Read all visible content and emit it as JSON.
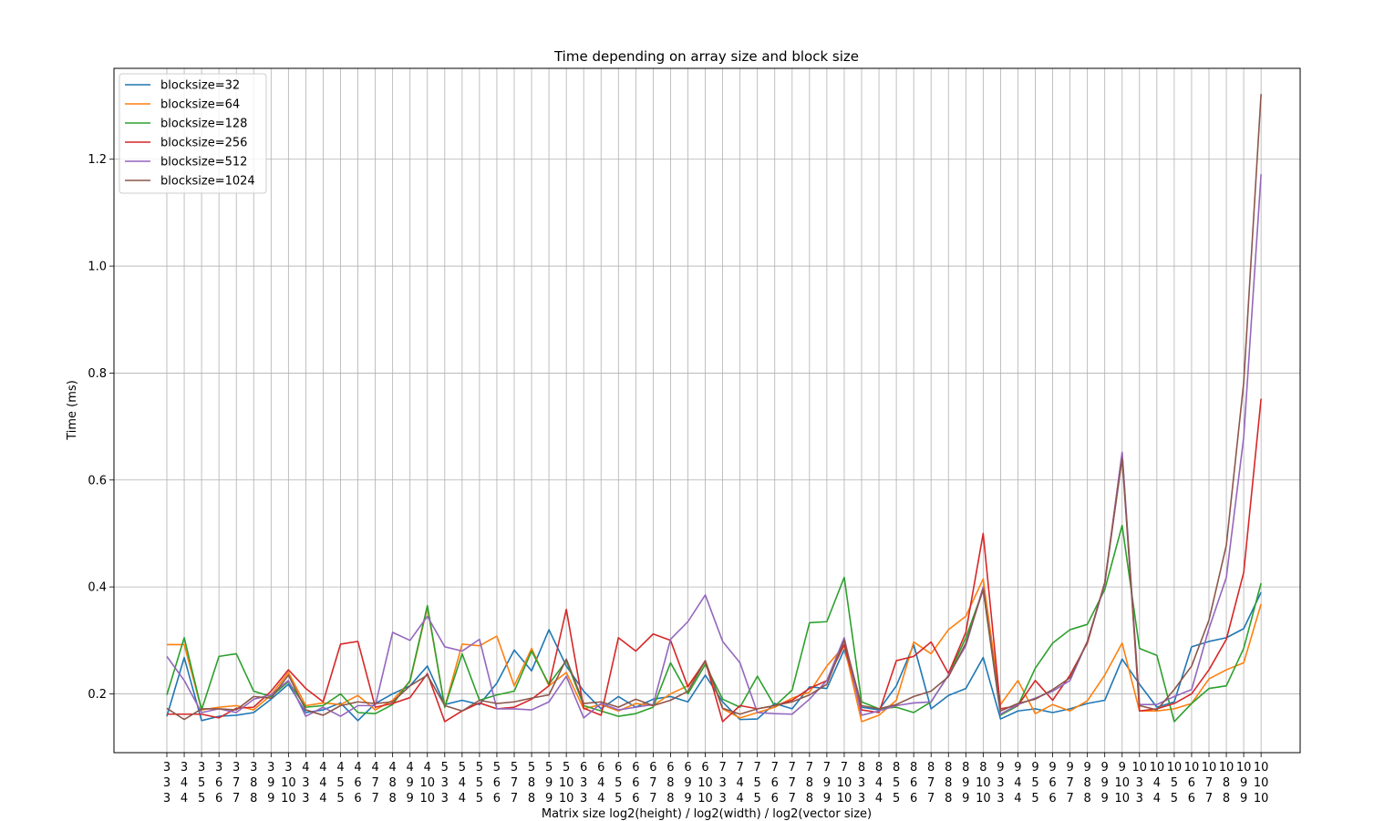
{
  "chart_data": {
    "type": "line",
    "title": "Time depending on array size and block size",
    "xlabel": "Matrix size log2(height) / log2(width) / log2(vector size)",
    "ylabel": "Time (ms)",
    "ylim": [
      0.09,
      1.37
    ],
    "yticks": [
      0.2,
      0.4,
      0.6,
      0.8,
      1.0,
      1.2
    ],
    "ytick_labels": [
      "0.2",
      "0.4",
      "0.6",
      "0.8",
      "1.0",
      "1.2"
    ],
    "grid": true,
    "legend_position": "top-left",
    "x_labels": [
      [
        "3",
        "3",
        "3"
      ],
      [
        "3",
        "4",
        "4"
      ],
      [
        "3",
        "5",
        "5"
      ],
      [
        "3",
        "6",
        "6"
      ],
      [
        "3",
        "7",
        "7"
      ],
      [
        "3",
        "8",
        "8"
      ],
      [
        "3",
        "9",
        "9"
      ],
      [
        "3",
        "10",
        "10"
      ],
      [
        "4",
        "3",
        "3"
      ],
      [
        "4",
        "4",
        "4"
      ],
      [
        "4",
        "5",
        "5"
      ],
      [
        "4",
        "6",
        "6"
      ],
      [
        "4",
        "7",
        "7"
      ],
      [
        "4",
        "8",
        "8"
      ],
      [
        "4",
        "9",
        "9"
      ],
      [
        "4",
        "10",
        "10"
      ],
      [
        "5",
        "3",
        "3"
      ],
      [
        "5",
        "4",
        "4"
      ],
      [
        "5",
        "5",
        "5"
      ],
      [
        "5",
        "6",
        "6"
      ],
      [
        "5",
        "7",
        "7"
      ],
      [
        "5",
        "8",
        "8"
      ],
      [
        "5",
        "9",
        "9"
      ],
      [
        "5",
        "10",
        "10"
      ],
      [
        "6",
        "3",
        "3"
      ],
      [
        "6",
        "4",
        "4"
      ],
      [
        "6",
        "5",
        "5"
      ],
      [
        "6",
        "6",
        "6"
      ],
      [
        "6",
        "7",
        "7"
      ],
      [
        "6",
        "8",
        "8"
      ],
      [
        "6",
        "9",
        "9"
      ],
      [
        "6",
        "10",
        "10"
      ],
      [
        "7",
        "3",
        "3"
      ],
      [
        "7",
        "4",
        "4"
      ],
      [
        "7",
        "5",
        "5"
      ],
      [
        "7",
        "6",
        "6"
      ],
      [
        "7",
        "7",
        "7"
      ],
      [
        "7",
        "8",
        "8"
      ],
      [
        "7",
        "9",
        "9"
      ],
      [
        "7",
        "10",
        "10"
      ],
      [
        "8",
        "3",
        "3"
      ],
      [
        "8",
        "4",
        "4"
      ],
      [
        "8",
        "5",
        "5"
      ],
      [
        "8",
        "6",
        "6"
      ],
      [
        "8",
        "7",
        "7"
      ],
      [
        "8",
        "8",
        "8"
      ],
      [
        "8",
        "9",
        "9"
      ],
      [
        "8",
        "10",
        "10"
      ],
      [
        "9",
        "3",
        "3"
      ],
      [
        "9",
        "4",
        "4"
      ],
      [
        "9",
        "5",
        "5"
      ],
      [
        "9",
        "6",
        "6"
      ],
      [
        "9",
        "7",
        "7"
      ],
      [
        "9",
        "8",
        "8"
      ],
      [
        "9",
        "9",
        "9"
      ],
      [
        "9",
        "10",
        "10"
      ],
      [
        "10",
        "3",
        "3"
      ],
      [
        "10",
        "4",
        "4"
      ],
      [
        "10",
        "5",
        "5"
      ],
      [
        "10",
        "6",
        "6"
      ],
      [
        "10",
        "7",
        "7"
      ],
      [
        "10",
        "8",
        "8"
      ],
      [
        "10",
        "9",
        "9"
      ],
      [
        "10",
        "10",
        "10"
      ]
    ],
    "series": [
      {
        "name": "blocksize=32",
        "color": "#1f77b4",
        "values": [
          0.158,
          0.268,
          0.15,
          0.158,
          0.16,
          0.165,
          0.19,
          0.218,
          0.165,
          0.17,
          0.183,
          0.15,
          0.182,
          0.2,
          0.215,
          0.252,
          0.18,
          0.188,
          0.18,
          0.22,
          0.282,
          0.243,
          0.32,
          0.252,
          0.205,
          0.172,
          0.195,
          0.175,
          0.19,
          0.195,
          0.185,
          0.235,
          0.185,
          0.152,
          0.153,
          0.182,
          0.172,
          0.213,
          0.21,
          0.283,
          0.175,
          0.17,
          0.215,
          0.292,
          0.172,
          0.197,
          0.21,
          0.268,
          0.153,
          0.168,
          0.172,
          0.165,
          0.172,
          0.182,
          0.188,
          0.265,
          0.218,
          0.175,
          0.185,
          0.288,
          0.298,
          0.305,
          0.322,
          0.39
        ]
      },
      {
        "name": "blocksize=64",
        "color": "#ff7f0e",
        "values": [
          0.292,
          0.292,
          0.17,
          0.175,
          0.178,
          0.17,
          0.198,
          0.24,
          0.178,
          0.183,
          0.18,
          0.197,
          0.17,
          0.188,
          0.223,
          0.362,
          0.175,
          0.293,
          0.29,
          0.308,
          0.215,
          0.285,
          0.215,
          0.24,
          0.172,
          0.18,
          0.168,
          0.182,
          0.178,
          0.2,
          0.215,
          0.26,
          0.172,
          0.155,
          0.165,
          0.175,
          0.192,
          0.203,
          0.252,
          0.29,
          0.148,
          0.16,
          0.188,
          0.297,
          0.275,
          0.32,
          0.345,
          0.415,
          0.18,
          0.225,
          0.163,
          0.18,
          0.168,
          0.187,
          0.235,
          0.295,
          0.168,
          0.168,
          0.172,
          0.182,
          0.228,
          0.245,
          0.258,
          0.368
        ]
      },
      {
        "name": "blocksize=128",
        "color": "#2ca02c",
        "values": [
          0.198,
          0.305,
          0.17,
          0.27,
          0.275,
          0.205,
          0.195,
          0.223,
          0.175,
          0.178,
          0.2,
          0.165,
          0.163,
          0.18,
          0.225,
          0.365,
          0.175,
          0.275,
          0.188,
          0.198,
          0.205,
          0.28,
          0.218,
          0.262,
          0.178,
          0.168,
          0.158,
          0.163,
          0.175,
          0.258,
          0.2,
          0.255,
          0.19,
          0.175,
          0.233,
          0.177,
          0.207,
          0.333,
          0.335,
          0.418,
          0.185,
          0.172,
          0.175,
          0.165,
          0.185,
          0.235,
          0.305,
          0.395,
          0.16,
          0.178,
          0.248,
          0.295,
          0.32,
          0.33,
          0.395,
          0.515,
          0.285,
          0.272,
          0.148,
          0.182,
          0.21,
          0.215,
          0.285,
          0.407
        ]
      },
      {
        "name": "blocksize=256",
        "color": "#d62728",
        "values": [
          0.162,
          0.162,
          0.162,
          0.155,
          0.173,
          0.175,
          0.205,
          0.245,
          0.21,
          0.185,
          0.293,
          0.298,
          0.175,
          0.182,
          0.193,
          0.238,
          0.148,
          0.168,
          0.183,
          0.172,
          0.175,
          0.19,
          0.215,
          0.358,
          0.173,
          0.16,
          0.305,
          0.28,
          0.312,
          0.3,
          0.213,
          0.262,
          0.148,
          0.178,
          0.172,
          0.178,
          0.188,
          0.21,
          0.225,
          0.292,
          0.17,
          0.165,
          0.262,
          0.27,
          0.297,
          0.238,
          0.315,
          0.5,
          0.172,
          0.178,
          0.225,
          0.188,
          0.235,
          0.295,
          0.408,
          0.65,
          0.168,
          0.172,
          0.182,
          0.2,
          0.245,
          0.302,
          0.427,
          0.752
        ]
      },
      {
        "name": "blocksize=512",
        "color": "#9467bd",
        "values": [
          0.27,
          0.225,
          0.165,
          0.172,
          0.165,
          0.19,
          0.198,
          0.225,
          0.158,
          0.175,
          0.158,
          0.178,
          0.178,
          0.315,
          0.3,
          0.345,
          0.288,
          0.28,
          0.302,
          0.172,
          0.172,
          0.17,
          0.185,
          0.233,
          0.155,
          0.182,
          0.17,
          0.175,
          0.18,
          0.302,
          0.335,
          0.385,
          0.298,
          0.258,
          0.165,
          0.163,
          0.162,
          0.19,
          0.225,
          0.305,
          0.16,
          0.168,
          0.178,
          0.183,
          0.185,
          0.235,
          0.29,
          0.4,
          0.162,
          0.18,
          0.192,
          0.205,
          0.225,
          0.298,
          0.405,
          0.652,
          0.18,
          0.18,
          0.195,
          0.208,
          0.322,
          0.418,
          0.68,
          1.172
        ]
      },
      {
        "name": "blocksize=1024",
        "color": "#8c564b",
        "values": [
          0.173,
          0.152,
          0.172,
          0.172,
          0.17,
          0.195,
          0.192,
          0.235,
          0.17,
          0.16,
          0.178,
          0.185,
          0.182,
          0.185,
          0.215,
          0.235,
          0.178,
          0.168,
          0.188,
          0.182,
          0.185,
          0.192,
          0.198,
          0.265,
          0.182,
          0.185,
          0.175,
          0.19,
          0.178,
          0.188,
          0.205,
          0.262,
          0.173,
          0.162,
          0.172,
          0.178,
          0.185,
          0.198,
          0.218,
          0.3,
          0.178,
          0.172,
          0.18,
          0.195,
          0.205,
          0.232,
          0.295,
          0.395,
          0.168,
          0.182,
          0.19,
          0.208,
          0.23,
          0.298,
          0.408,
          0.64,
          0.178,
          0.17,
          0.208,
          0.252,
          0.338,
          0.478,
          0.782,
          1.322
        ]
      }
    ]
  }
}
